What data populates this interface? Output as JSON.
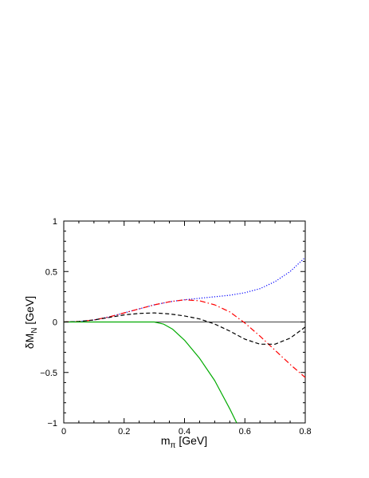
{
  "chart_data": {
    "type": "line",
    "title": "",
    "xlabel": {
      "main": "m",
      "sub": "π",
      "unit": " [GeV]"
    },
    "ylabel": {
      "main": "δM",
      "sub": "N",
      "unit": " [GeV]"
    },
    "xlim": [
      0,
      0.8
    ],
    "ylim": [
      -1,
      1
    ],
    "xticks": [
      0,
      0.2,
      0.4,
      0.6,
      0.8
    ],
    "xtick_labels": [
      "0",
      "0.2",
      "0.4",
      "0.6",
      "0.8"
    ],
    "yticks": [
      -1,
      -0.5,
      0,
      0.5,
      1
    ],
    "ytick_labels": [
      "−1",
      "−0.5",
      "0",
      "0.5",
      "1"
    ],
    "zero_line": true,
    "grid": false,
    "series": [
      {
        "style": "dotted",
        "color": "#0000ff",
        "x": [
          0,
          0.05,
          0.1,
          0.15,
          0.2,
          0.25,
          0.3,
          0.35,
          0.4,
          0.45,
          0.5,
          0.55,
          0.6,
          0.65,
          0.7,
          0.75,
          0.8
        ],
        "y": [
          0,
          0.005,
          0.02,
          0.05,
          0.09,
          0.13,
          0.17,
          0.2,
          0.22,
          0.235,
          0.25,
          0.265,
          0.29,
          0.33,
          0.4,
          0.5,
          0.64
        ]
      },
      {
        "style": "dash-dot",
        "color": "#ff0000",
        "x": [
          0,
          0.05,
          0.1,
          0.15,
          0.2,
          0.25,
          0.3,
          0.35,
          0.4,
          0.45,
          0.5,
          0.55,
          0.6,
          0.65,
          0.7,
          0.75,
          0.8
        ],
        "y": [
          0,
          0.005,
          0.02,
          0.05,
          0.09,
          0.13,
          0.17,
          0.2,
          0.22,
          0.21,
          0.17,
          0.1,
          -0.01,
          -0.14,
          -0.28,
          -0.42,
          -0.55
        ]
      },
      {
        "style": "dashed",
        "color": "#000000",
        "x": [
          0,
          0.05,
          0.1,
          0.15,
          0.2,
          0.25,
          0.3,
          0.35,
          0.4,
          0.45,
          0.5,
          0.55,
          0.6,
          0.65,
          0.7,
          0.75,
          0.8
        ],
        "y": [
          0,
          0.005,
          0.02,
          0.045,
          0.07,
          0.085,
          0.09,
          0.08,
          0.06,
          0.03,
          -0.02,
          -0.09,
          -0.17,
          -0.22,
          -0.22,
          -0.16,
          -0.05
        ]
      },
      {
        "style": "solid",
        "color": "#00aa00",
        "x": [
          0,
          0.05,
          0.1,
          0.15,
          0.2,
          0.25,
          0.3,
          0.33,
          0.36,
          0.4,
          0.45,
          0.5,
          0.55,
          0.573
        ],
        "y": [
          0,
          0.0,
          0.0,
          0.0,
          0.0,
          0.0,
          0.0,
          -0.02,
          -0.07,
          -0.18,
          -0.36,
          -0.58,
          -0.86,
          -1.0
        ]
      }
    ]
  }
}
